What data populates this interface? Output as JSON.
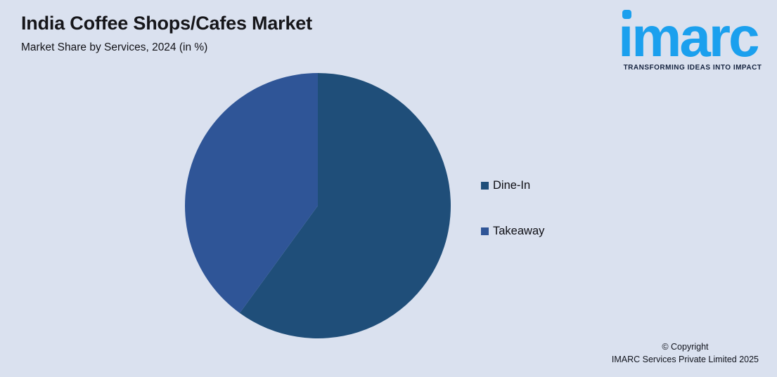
{
  "page": {
    "background": "#DAE1EF"
  },
  "header": {
    "title": "India Coffee Shops/Cafes Market",
    "subtitle": "Market Share by Services, 2024 (in %)"
  },
  "logo": {
    "wordmark": "imarc",
    "wordmark_display": "ımarc",
    "tagline": "TRANSFORMING IDEAS INTO IMPACT",
    "brand_color": "#1BA0EE",
    "tagline_color": "#15233F"
  },
  "footer": {
    "copyright_line1": "© Copyright",
    "copyright_line2": "IMARC Services Private Limited 2025"
  },
  "chart_data": {
    "type": "pie",
    "title": "India Coffee Shops/Cafes Market",
    "subtitle": "Market Share by Services, 2024 (in %)",
    "labels": [
      "Dine-In",
      "Takeaway"
    ],
    "values": [
      60,
      40
    ],
    "unit": "%",
    "colors": [
      "#1F4E79",
      "#2F5597"
    ],
    "start_angle_deg": 0,
    "direction": "clockwise",
    "legend_position": "right",
    "data_labels_shown": false
  }
}
